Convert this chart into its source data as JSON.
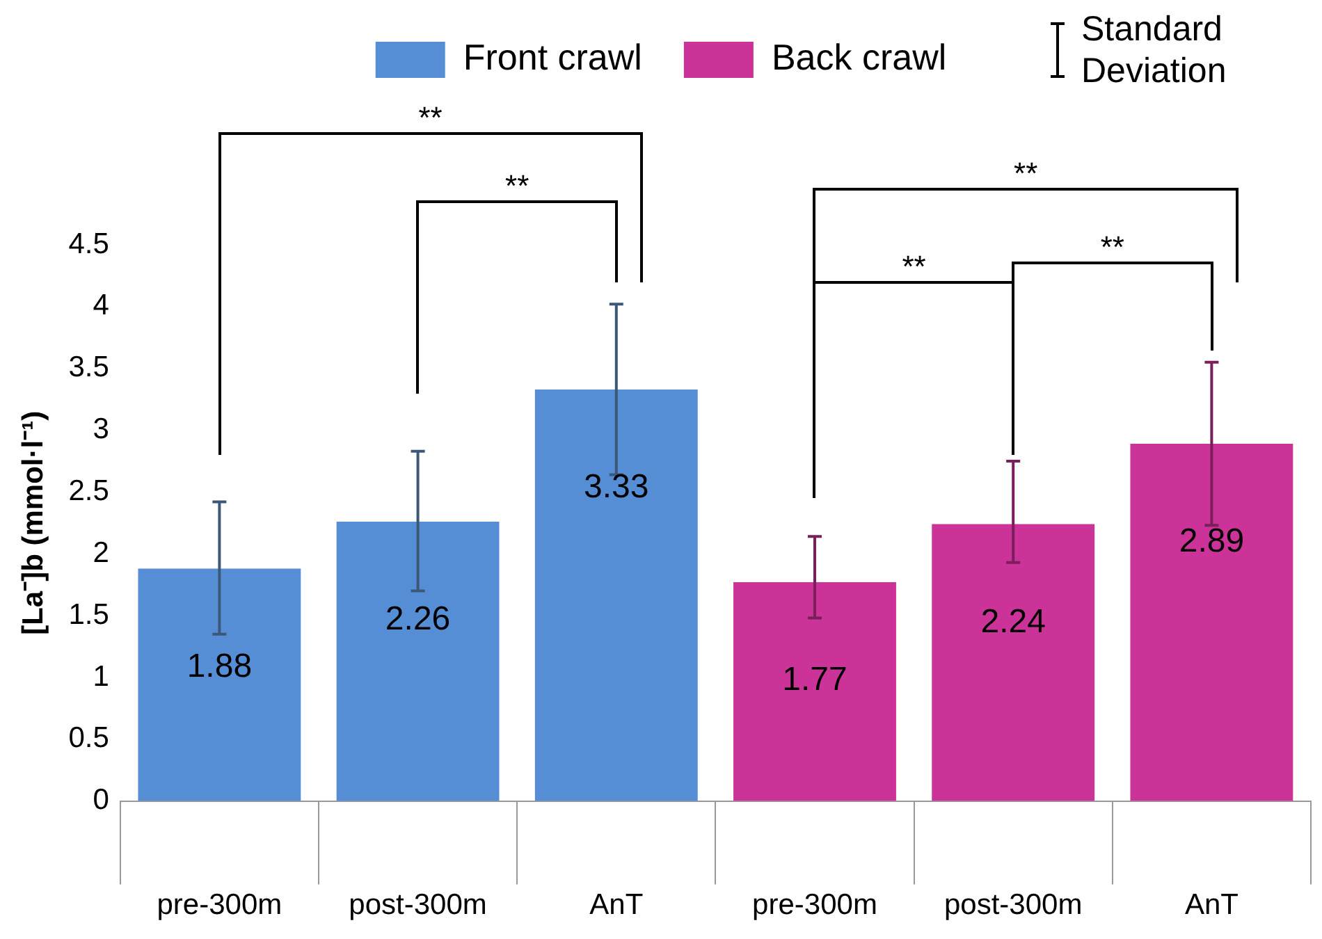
{
  "chart_data": {
    "type": "bar",
    "ylabel": "[La⁻]b (mmol·l⁻¹)",
    "categories": [
      "pre-300m",
      "post-300m",
      "AnT",
      "pre-300m",
      "post-300m",
      "AnT"
    ],
    "series": [
      {
        "name": "Front crawl",
        "color": "#558ed5",
        "values": [
          1.88,
          2.26,
          3.33,
          null,
          null,
          null
        ],
        "errors": [
          [
            1.35,
            2.42
          ],
          [
            1.7,
            2.83
          ],
          [
            2.64,
            4.02
          ],
          null,
          null,
          null
        ]
      },
      {
        "name": "Back crawl",
        "color": "#cc3399",
        "values": [
          null,
          null,
          null,
          1.77,
          2.24,
          2.89
        ],
        "errors": [
          null,
          null,
          null,
          [
            1.48,
            2.14
          ],
          [
            1.93,
            2.75
          ],
          [
            2.23,
            3.55
          ]
        ]
      }
    ],
    "ylim": [
      0,
      4.5
    ],
    "yticks": [
      0,
      0.5,
      1,
      1.5,
      2,
      2.5,
      3,
      3.5,
      4,
      4.5
    ],
    "grid": false,
    "legend": "top",
    "data_labels": true,
    "annotations": [
      "**",
      "**",
      "**",
      "**",
      "**",
      "Standard Deviation"
    ]
  }
}
